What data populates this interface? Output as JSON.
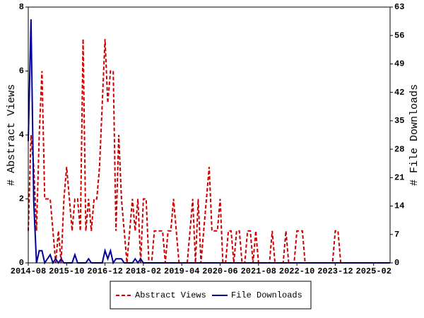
{
  "chart_data": {
    "type": "line",
    "x": [
      "2014-08",
      "2014-09",
      "2014-10",
      "2014-11",
      "2014-12",
      "2015-01",
      "2015-02",
      "2015-03",
      "2015-04",
      "2015-05",
      "2015-06",
      "2015-07",
      "2015-08",
      "2015-09",
      "2015-10",
      "2015-11",
      "2015-12",
      "2016-01",
      "2016-02",
      "2016-03",
      "2016-04",
      "2016-05",
      "2016-06",
      "2016-07",
      "2016-08",
      "2016-09",
      "2016-10",
      "2016-11",
      "2016-12",
      "2017-01",
      "2017-02",
      "2017-03",
      "2017-04",
      "2017-05",
      "2017-06",
      "2017-07",
      "2017-08",
      "2017-09",
      "2017-10",
      "2017-11",
      "2017-12",
      "2018-01",
      "2018-02",
      "2018-03",
      "2018-04",
      "2018-05",
      "2018-06",
      "2018-07",
      "2018-08",
      "2018-09",
      "2018-10",
      "2018-11",
      "2018-12",
      "2019-01",
      "2019-02",
      "2019-03",
      "2019-04",
      "2019-05",
      "2019-06",
      "2019-07",
      "2019-08",
      "2019-09",
      "2019-10",
      "2019-11",
      "2019-12",
      "2020-01",
      "2020-02",
      "2020-03",
      "2020-04",
      "2020-05",
      "2020-06",
      "2020-07",
      "2020-08",
      "2020-09",
      "2020-10",
      "2020-11",
      "2020-12",
      "2021-01",
      "2021-02",
      "2021-03",
      "2021-04",
      "2021-05",
      "2021-06",
      "2021-07",
      "2021-08",
      "2021-09",
      "2021-10",
      "2021-11",
      "2021-12",
      "2022-01",
      "2022-02",
      "2022-03",
      "2022-04",
      "2022-05",
      "2022-06",
      "2022-07",
      "2022-08",
      "2022-09",
      "2022-10",
      "2022-11",
      "2022-12",
      "2023-01",
      "2023-02",
      "2023-03",
      "2023-04",
      "2023-05",
      "2023-06",
      "2023-07",
      "2023-08",
      "2023-09",
      "2023-10",
      "2023-11",
      "2023-12",
      "2024-01",
      "2024-02",
      "2024-03",
      "2024-04",
      "2024-05",
      "2024-06",
      "2024-07",
      "2024-08",
      "2024-09",
      "2024-10",
      "2024-11",
      "2024-12",
      "2025-01",
      "2025-02",
      "2025-03",
      "2025-04",
      "2025-05",
      "2025-06",
      "2025-07",
      "2025-08"
    ],
    "series": [
      {
        "name": "Abstract Views",
        "color": "#cc0000",
        "dash": true,
        "values": [
          1,
          4,
          3,
          1,
          4,
          6,
          2,
          2,
          2,
          1,
          0,
          1,
          0,
          2,
          3,
          2,
          1,
          2,
          2,
          1,
          7,
          1,
          2,
          1,
          2,
          2,
          3,
          5,
          7,
          5,
          6,
          6,
          1,
          4,
          2,
          1,
          0,
          1,
          2,
          1,
          2,
          0,
          2,
          2,
          0,
          0,
          1,
          1,
          1,
          1,
          0,
          1,
          1,
          2,
          1,
          0,
          0,
          0,
          0,
          1,
          2,
          0,
          2,
          0,
          1,
          2,
          3,
          1,
          1,
          1,
          2,
          0,
          0,
          1,
          1,
          0,
          1,
          1,
          0,
          0,
          1,
          1,
          0,
          1,
          0,
          0,
          0,
          0,
          0,
          1,
          0,
          0,
          0,
          0,
          1,
          0,
          0,
          0,
          1,
          1,
          1,
          0,
          0,
          0,
          0,
          0,
          0,
          0,
          0,
          0,
          0,
          0,
          1,
          1,
          0,
          0,
          0,
          0,
          0,
          0,
          0,
          0,
          0,
          0,
          0,
          0,
          0,
          0,
          0,
          0,
          0,
          0,
          0
        ]
      },
      {
        "name": "File Downloads",
        "color": "#000099",
        "axis": "y2",
        "values": [
          30,
          60,
          15,
          0,
          3,
          3,
          0,
          1,
          2,
          0,
          1,
          0,
          1,
          0,
          0,
          0,
          0,
          2,
          0,
          0,
          0,
          0,
          1,
          0,
          0,
          0,
          0,
          0,
          3,
          1,
          3,
          0,
          1,
          1,
          1,
          0,
          0,
          0,
          0,
          1,
          0,
          1,
          0,
          0,
          0,
          0,
          0,
          0,
          0,
          0,
          0,
          0,
          0,
          0,
          0,
          0,
          0,
          0,
          0,
          0,
          0,
          0,
          0,
          0,
          0,
          0,
          0,
          0,
          0,
          0,
          0,
          0,
          0,
          0,
          0,
          0,
          0,
          0,
          0,
          0,
          0,
          0,
          0,
          0,
          0,
          0,
          0,
          0,
          0,
          0,
          0,
          0,
          0,
          0,
          0,
          0,
          0,
          0,
          0,
          0,
          0,
          0,
          0,
          0,
          0,
          0,
          0,
          0,
          0,
          0,
          0,
          0,
          0,
          0,
          0,
          0,
          0,
          0,
          0,
          0,
          0,
          0,
          0,
          0,
          0,
          0,
          0,
          0,
          0,
          0,
          0,
          0,
          0
        ]
      }
    ],
    "xlim": [
      "2014-08",
      "2025-08"
    ],
    "xticks": [
      "2014-08",
      "2015-10",
      "2016-12",
      "2018-02",
      "2019-04",
      "2020-06",
      "2021-08",
      "2022-10",
      "2023-12",
      "2025-02"
    ],
    "ylabel": "# Abstract Views",
    "ylim": [
      0,
      8
    ],
    "yticks": [
      0,
      2,
      4,
      6,
      8
    ],
    "y2label": "# File Downloads",
    "y2lim": [
      0,
      63
    ],
    "y2ticks": [
      0,
      7,
      14,
      21,
      28,
      35,
      42,
      49,
      56,
      63
    ],
    "grid": false
  }
}
